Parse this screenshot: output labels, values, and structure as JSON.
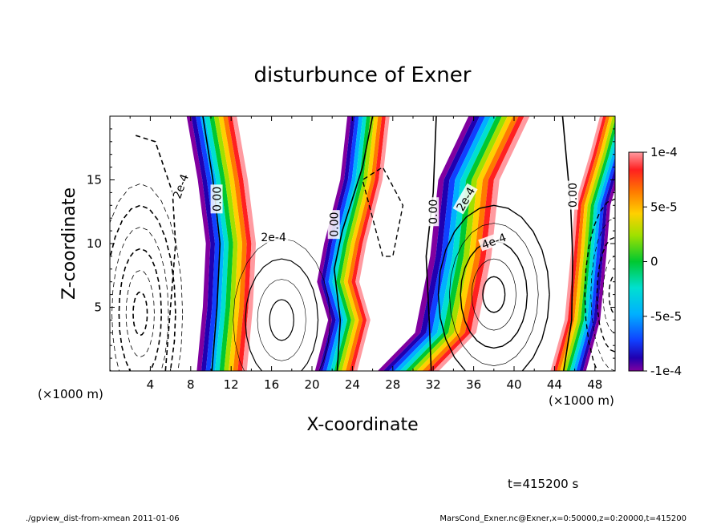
{
  "chart_data": {
    "type": "heatmap",
    "title": "disturbunce of Exner",
    "xlabel": "X-coordinate",
    "ylabel": "Z-coordinate",
    "x_unit_label": "(×1000 m)",
    "x_unit_label_right": "(×1000 m)",
    "xlim": [
      0,
      50
    ],
    "ylim": [
      0,
      20
    ],
    "x_ticks": [
      4,
      8,
      12,
      16,
      20,
      24,
      28,
      32,
      36,
      40,
      44,
      48
    ],
    "x_tick_labels": [
      "4",
      "8",
      "12",
      "16",
      "20",
      "24",
      "28",
      "32",
      "36",
      "40",
      "44",
      "48"
    ],
    "y_ticks": [
      5,
      10,
      15
    ],
    "y_tick_labels": [
      "5",
      "10",
      "15"
    ],
    "colorbar": {
      "range": [
        -0.0001,
        0.0001
      ],
      "tick_labels": [
        "1e-4",
        "5e-5",
        "0",
        "-5e-5",
        "-1e-4"
      ],
      "tick_values": [
        0.0001,
        5e-05,
        0,
        -5e-05,
        -0.0001
      ]
    },
    "contour_labels": [
      "2e-4",
      "0.00",
      "2e-4",
      "0.00",
      "0.00",
      "2e-4",
      "4e-4",
      "0.00"
    ],
    "time_label": "t=415200 s",
    "footer_left": "./gpview_dist-from-xmean  2011-01-06",
    "footer_right": "MarsCond_Exner.nc@Exner,x=0:50000,z=0:20000,t=415200",
    "grid": false
  }
}
